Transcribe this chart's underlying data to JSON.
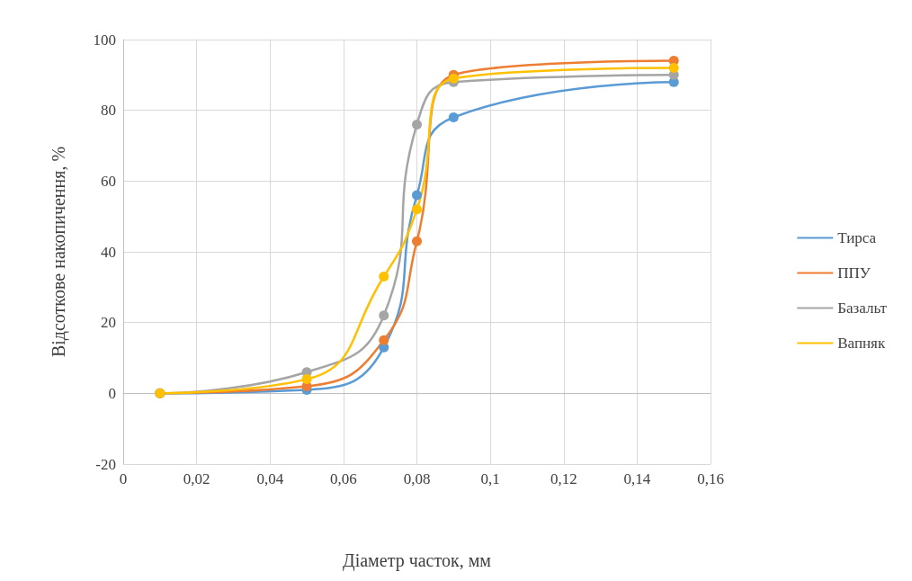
{
  "chart_data": {
    "type": "line",
    "xlabel": "Діаметр часток, мм",
    "ylabel": "Відсоткове накопичення, %",
    "x": [
      0.01,
      0.05,
      0.071,
      0.08,
      0.09,
      0.15
    ],
    "series": [
      {
        "name": "Тирса",
        "color": "#5b9bd5",
        "values": [
          0,
          1,
          13,
          56,
          78,
          88
        ]
      },
      {
        "name": "ППУ",
        "color": "#ed7d31",
        "values": [
          0,
          2,
          15,
          43,
          90,
          94
        ]
      },
      {
        "name": "Базальт",
        "color": "#a5a5a5",
        "values": [
          0,
          6,
          22,
          76,
          88,
          90
        ]
      },
      {
        "name": "Вапняк",
        "color": "#ffc000",
        "values": [
          0,
          4,
          33,
          52,
          89,
          92
        ]
      }
    ],
    "xlim": [
      0,
      0.16
    ],
    "xticks": [
      0,
      {
        "value": 0.02,
        "label": "0,02"
      },
      {
        "value": 0.04,
        "label": "0,04"
      },
      {
        "value": 0.06,
        "label": "0,06"
      },
      {
        "value": 0.08,
        "label": "0,08"
      },
      {
        "value": 0.1,
        "label": "0,1"
      },
      {
        "value": 0.12,
        "label": "0,12"
      },
      {
        "value": 0.14,
        "label": "0,14"
      },
      {
        "value": 0.16,
        "label": "0,16"
      }
    ],
    "ylim": [
      -20,
      100
    ],
    "yticks": [
      -20,
      0,
      20,
      40,
      60,
      80,
      100
    ],
    "grid": true,
    "legend": "right",
    "marker": "circle",
    "line_style": "solid"
  }
}
